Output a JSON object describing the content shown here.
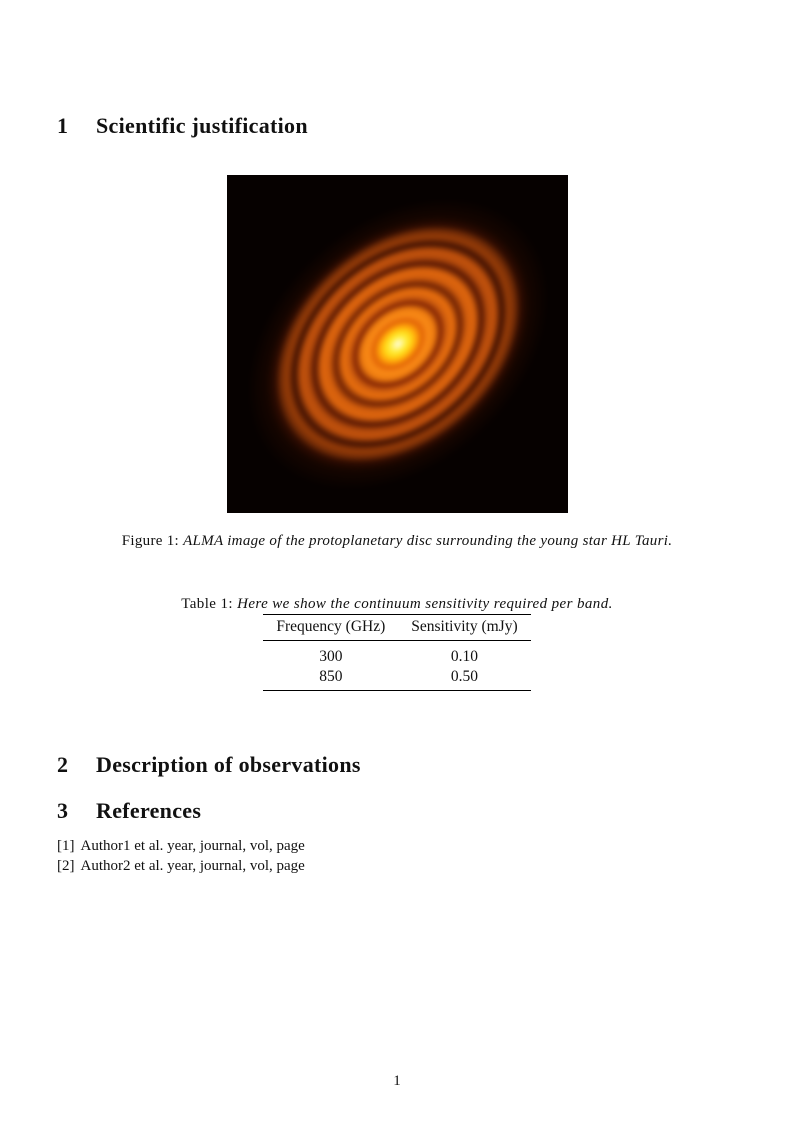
{
  "page": {
    "number": "1",
    "background_color": "#ffffff",
    "text_color": "#111111"
  },
  "sections": [
    {
      "number": "1",
      "title": "Scientific justification"
    },
    {
      "number": "2",
      "title": "Description of observations"
    },
    {
      "number": "3",
      "title": "References"
    }
  ],
  "figure": {
    "label": "Figure 1:",
    "caption": "ALMA image of the protoplanetary disc surrounding the young star HL Tauri.",
    "image": {
      "subject": "hl-tauri-protoplanetary-disc",
      "colors": {
        "core": "#ffee3e",
        "inner_ring": "#f98a16",
        "outer_ring": "#c0510c",
        "gap": "#571703",
        "background": "#020000"
      }
    }
  },
  "table": {
    "label": "Table 1:",
    "caption": "Here we show the continuum sensitivity required per band.",
    "columns": [
      "Frequency (GHz)",
      "Sensitivity (mJy)"
    ],
    "rows": [
      [
        "300",
        "0.10"
      ],
      [
        "850",
        "0.50"
      ]
    ]
  },
  "references": [
    {
      "marker": "[1]",
      "text": "Author1 et al. year, journal, vol, page"
    },
    {
      "marker": "[2]",
      "text": "Author2 et al. year, journal, vol, page"
    }
  ]
}
